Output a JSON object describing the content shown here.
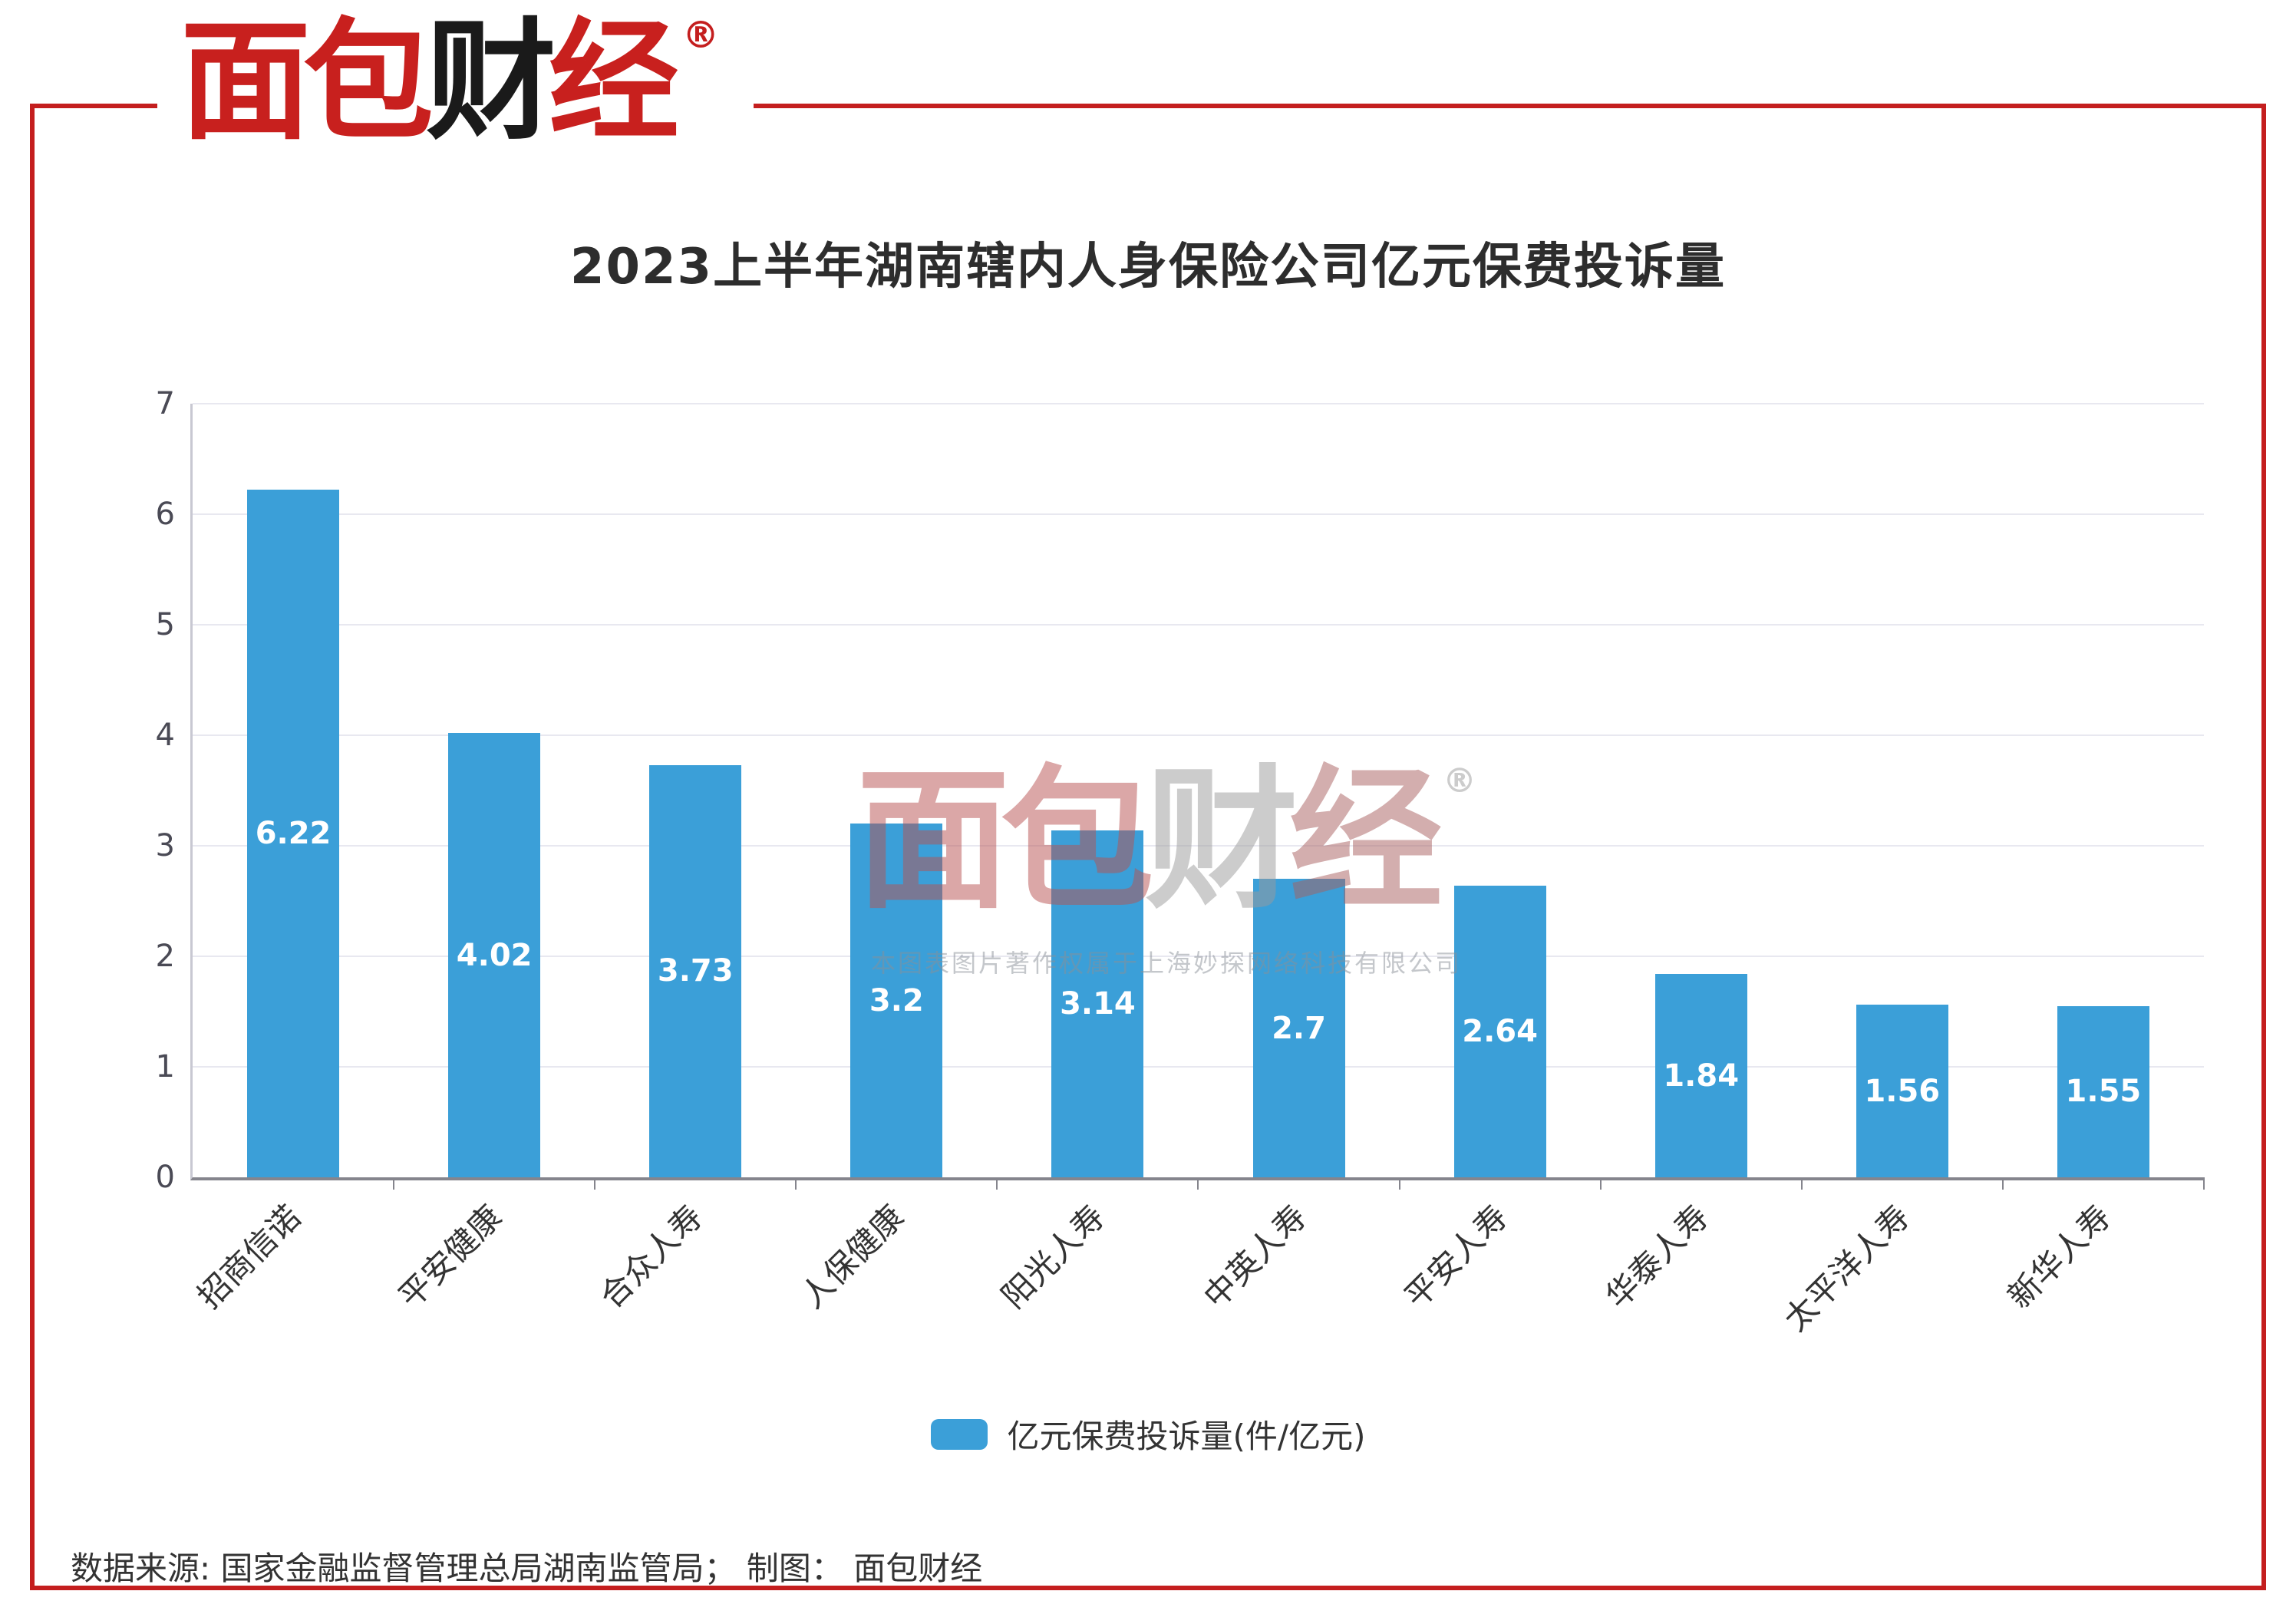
{
  "brand": {
    "chars": [
      {
        "ch": "面",
        "color": "#c8201e"
      },
      {
        "ch": "包",
        "color": "#c8201e"
      },
      {
        "ch": "财",
        "color": "#1a1a1a"
      },
      {
        "ch": "经",
        "color": "#c8201e"
      }
    ],
    "registered": "®"
  },
  "chart_data": {
    "type": "bar",
    "title": "2023上半年湖南辖内人身保险公司亿元保费投诉量",
    "categories": [
      "招商信诺",
      "平安健康",
      "合众人寿",
      "人保健康",
      "阳光人寿",
      "中英人寿",
      "平安人寿",
      "华泰人寿",
      "太平洋人寿",
      "新华人寿"
    ],
    "values": [
      6.22,
      4.02,
      3.73,
      3.2,
      3.14,
      2.7,
      2.64,
      1.84,
      1.56,
      1.55
    ],
    "xlabel": "",
    "ylabel": "",
    "ylim": [
      0,
      7
    ],
    "yticks": [
      0,
      1,
      2,
      3,
      4,
      5,
      6,
      7
    ],
    "grid": true,
    "bar_color": "#3b9fd8",
    "value_label_color": "#ffffff",
    "legend": {
      "label": "亿元保费投诉量(件/亿元)",
      "position": "bottom"
    }
  },
  "watermark": {
    "chars": [
      {
        "ch": "面",
        "color": "#b85252"
      },
      {
        "ch": "包",
        "color": "#b85252"
      },
      {
        "ch": "财",
        "color": "#9b9b9b"
      },
      {
        "ch": "经",
        "color": "#a86060"
      }
    ],
    "registered": "®",
    "copyright": "本图表图片著作权属于上海妙探网络科技有限公司"
  },
  "footer": {
    "text": "数据来源: 国家金融监督管理总局湖南监管局； 制图： 面包财经"
  },
  "frame_color": "#c41e1e"
}
